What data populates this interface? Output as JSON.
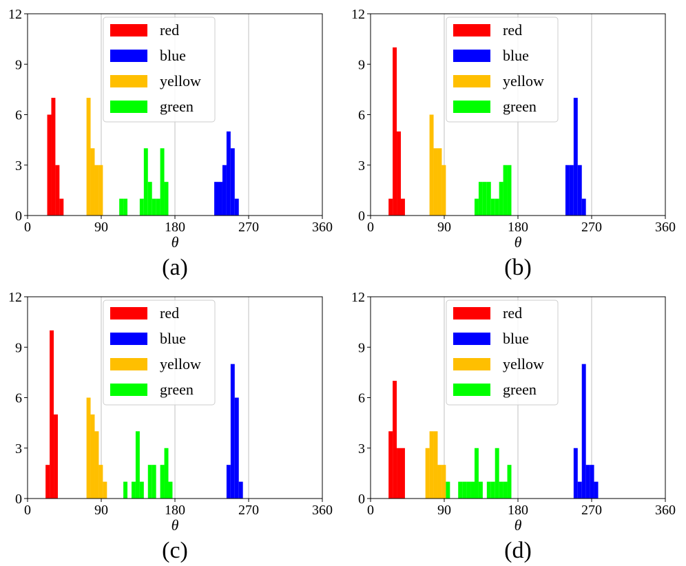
{
  "chart_data": [
    {
      "type": "bar",
      "caption": "(a)",
      "xlabel": "θ",
      "ylabel": "",
      "xlim": [
        0,
        360
      ],
      "ylim": [
        0,
        12
      ],
      "xticks": [
        "0",
        "90",
        "180",
        "270",
        "360"
      ],
      "yticks": [
        "0",
        "3",
        "6",
        "9",
        "12"
      ],
      "grid": "vertical",
      "legend_position": "top-center",
      "series": [
        {
          "name": "red",
          "color": "#ff0000",
          "bins": [
            [
              24,
              6
            ],
            [
              29,
              7
            ],
            [
              34,
              3
            ],
            [
              39,
              1
            ]
          ]
        },
        {
          "name": "blue",
          "color": "#0000ff",
          "bins": [
            [
              228,
              2
            ],
            [
              233,
              2
            ],
            [
              238,
              3
            ],
            [
              243,
              5
            ],
            [
              248,
              4
            ],
            [
              253,
              1
            ]
          ]
        },
        {
          "name": "yellow",
          "color": "#ffbf00",
          "bins": [
            [
              72,
              7
            ],
            [
              77,
              4
            ],
            [
              82,
              3
            ],
            [
              87,
              3
            ]
          ]
        },
        {
          "name": "green",
          "color": "#00ff00",
          "bins": [
            [
              112,
              1
            ],
            [
              117,
              1
            ],
            [
              137,
              1
            ],
            [
              142,
              4
            ],
            [
              147,
              2
            ],
            [
              152,
              1
            ],
            [
              157,
              1
            ],
            [
              162,
              4
            ],
            [
              167,
              2
            ]
          ]
        }
      ]
    },
    {
      "type": "bar",
      "caption": "(b)",
      "xlabel": "θ",
      "ylabel": "",
      "xlim": [
        0,
        360
      ],
      "ylim": [
        0,
        12
      ],
      "xticks": [
        "0",
        "90",
        "180",
        "270",
        "360"
      ],
      "yticks": [
        "0",
        "3",
        "6",
        "9",
        "12"
      ],
      "grid": "vertical",
      "legend_position": "top-center",
      "series": [
        {
          "name": "red",
          "color": "#ff0000",
          "bins": [
            [
              22,
              1
            ],
            [
              27,
              10
            ],
            [
              32,
              5
            ],
            [
              37,
              1
            ]
          ]
        },
        {
          "name": "blue",
          "color": "#0000ff",
          "bins": [
            [
              238,
              3
            ],
            [
              243,
              3
            ],
            [
              248,
              7
            ],
            [
              253,
              3
            ],
            [
              258,
              1
            ]
          ]
        },
        {
          "name": "yellow",
          "color": "#ffbf00",
          "bins": [
            [
              72,
              6
            ],
            [
              77,
              4
            ],
            [
              82,
              4
            ],
            [
              87,
              3
            ]
          ]
        },
        {
          "name": "green",
          "color": "#00ff00",
          "bins": [
            [
              127,
              1
            ],
            [
              132,
              2
            ],
            [
              137,
              2
            ],
            [
              142,
              2
            ],
            [
              147,
              1
            ],
            [
              152,
              1
            ],
            [
              157,
              2
            ],
            [
              162,
              3
            ],
            [
              167,
              3
            ]
          ]
        }
      ]
    },
    {
      "type": "bar",
      "caption": "(c)",
      "xlabel": "θ",
      "ylabel": "",
      "xlim": [
        0,
        360
      ],
      "ylim": [
        0,
        12
      ],
      "xticks": [
        "0",
        "90",
        "180",
        "270",
        "360"
      ],
      "yticks": [
        "0",
        "3",
        "6",
        "9",
        "12"
      ],
      "grid": "vertical",
      "legend_position": "top-center",
      "series": [
        {
          "name": "red",
          "color": "#ff0000",
          "bins": [
            [
              22,
              2
            ],
            [
              27,
              10
            ],
            [
              32,
              5
            ]
          ]
        },
        {
          "name": "blue",
          "color": "#0000ff",
          "bins": [
            [
              243,
              2
            ],
            [
              248,
              8
            ],
            [
              253,
              6
            ],
            [
              258,
              1
            ]
          ]
        },
        {
          "name": "yellow",
          "color": "#ffbf00",
          "bins": [
            [
              72,
              6
            ],
            [
              77,
              5
            ],
            [
              82,
              4
            ],
            [
              87,
              2
            ],
            [
              92,
              1
            ]
          ]
        },
        {
          "name": "green",
          "color": "#00ff00",
          "bins": [
            [
              117,
              1
            ],
            [
              127,
              1
            ],
            [
              132,
              4
            ],
            [
              137,
              1
            ],
            [
              147,
              2
            ],
            [
              152,
              2
            ],
            [
              162,
              2
            ],
            [
              167,
              3
            ],
            [
              172,
              1
            ]
          ]
        }
      ]
    },
    {
      "type": "bar",
      "caption": "(d)",
      "xlabel": "θ",
      "ylabel": "",
      "xlim": [
        0,
        360
      ],
      "ylim": [
        0,
        12
      ],
      "xticks": [
        "0",
        "90",
        "180",
        "270",
        "360"
      ],
      "yticks": [
        "0",
        "3",
        "6",
        "9",
        "12"
      ],
      "grid": "vertical",
      "legend_position": "top-center",
      "series": [
        {
          "name": "red",
          "color": "#ff0000",
          "bins": [
            [
              22,
              4
            ],
            [
              27,
              7
            ],
            [
              32,
              3
            ],
            [
              37,
              3
            ]
          ]
        },
        {
          "name": "blue",
          "color": "#0000ff",
          "bins": [
            [
              248,
              3
            ],
            [
              253,
              1
            ],
            [
              258,
              8
            ],
            [
              263,
              2
            ],
            [
              268,
              2
            ],
            [
              273,
              1
            ]
          ]
        },
        {
          "name": "yellow",
          "color": "#ffbf00",
          "bins": [
            [
              67,
              3
            ],
            [
              72,
              4
            ],
            [
              77,
              4
            ],
            [
              82,
              2
            ],
            [
              87,
              2
            ]
          ]
        },
        {
          "name": "green",
          "color": "#00ff00",
          "bins": [
            [
              92,
              1
            ],
            [
              107,
              1
            ],
            [
              112,
              1
            ],
            [
              117,
              1
            ],
            [
              122,
              1
            ],
            [
              127,
              3
            ],
            [
              132,
              1
            ],
            [
              142,
              1
            ],
            [
              147,
              1
            ],
            [
              152,
              3
            ],
            [
              157,
              1
            ],
            [
              162,
              1
            ],
            [
              167,
              2
            ]
          ]
        }
      ]
    }
  ]
}
